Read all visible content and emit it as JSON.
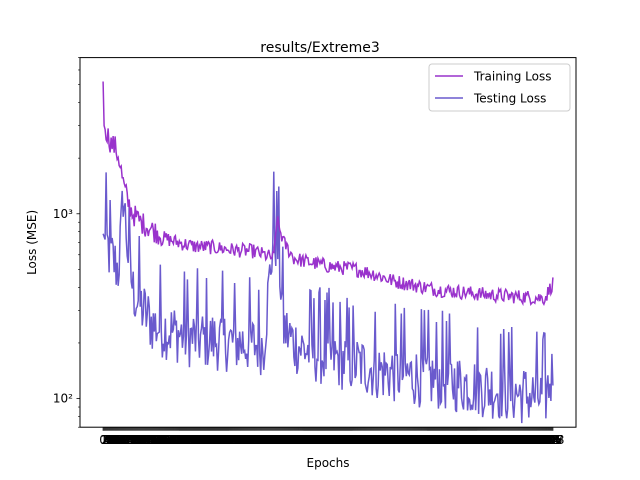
{
  "chart_data": {
    "type": "line",
    "title": "results/Extreme3",
    "xlabel": "Epochs",
    "ylabel": "Loss (MSE)",
    "yscale": "log",
    "ylim": [
      70,
      7000
    ],
    "xlim": [
      -23,
      471
    ],
    "epochs": 449,
    "x_tick_labels_note": "one tick per epoch 0..448, labels overlap into an unreadable band",
    "y_ticks": [
      {
        "value": 100,
        "label": "10²"
      },
      {
        "value": 1000,
        "label": "10³"
      }
    ],
    "legend_position": "upper right",
    "series": [
      {
        "name": "Training Loss",
        "color": "#9932CC",
        "control_points": [
          [
            0,
            5200
          ],
          [
            1,
            3000
          ],
          [
            4,
            2600
          ],
          [
            8,
            2300
          ],
          [
            12,
            2200
          ],
          [
            16,
            1900
          ],
          [
            20,
            1400
          ],
          [
            25,
            1100
          ],
          [
            30,
            950
          ],
          [
            38,
            860
          ],
          [
            50,
            780
          ],
          [
            60,
            720
          ],
          [
            75,
            680
          ],
          [
            90,
            650
          ],
          [
            110,
            640
          ],
          [
            130,
            620
          ],
          [
            150,
            610
          ],
          [
            170,
            560
          ],
          [
            173,
            900
          ],
          [
            180,
            680
          ],
          [
            190,
            560
          ],
          [
            200,
            540
          ],
          [
            215,
            520
          ],
          [
            230,
            500
          ],
          [
            250,
            490
          ],
          [
            270,
            460
          ],
          [
            290,
            420
          ],
          [
            310,
            400
          ],
          [
            330,
            380
          ],
          [
            350,
            370
          ],
          [
            370,
            360
          ],
          [
            400,
            350
          ],
          [
            420,
            345
          ],
          [
            440,
            340
          ],
          [
            448,
            410
          ]
        ]
      },
      {
        "name": "Testing Loss",
        "color": "#6A5ACD",
        "control_points": [
          [
            0,
            780
          ],
          [
            3,
            700
          ],
          [
            6,
            620
          ],
          [
            10,
            560
          ],
          [
            15,
            500
          ],
          [
            18,
            800
          ],
          [
            20,
            1300
          ],
          [
            25,
            600
          ],
          [
            30,
            380
          ],
          [
            40,
            300
          ],
          [
            50,
            250
          ],
          [
            60,
            240
          ],
          [
            70,
            230
          ],
          [
            85,
            215
          ],
          [
            100,
            210
          ],
          [
            120,
            205
          ],
          [
            140,
            200
          ],
          [
            160,
            195
          ],
          [
            170,
            800
          ],
          [
            175,
            600
          ],
          [
            180,
            240
          ],
          [
            190,
            200
          ],
          [
            200,
            185
          ],
          [
            220,
            170
          ],
          [
            240,
            160
          ],
          [
            260,
            150
          ],
          [
            280,
            140
          ],
          [
            300,
            135
          ],
          [
            320,
            130
          ],
          [
            340,
            125
          ],
          [
            360,
            120
          ],
          [
            380,
            115
          ],
          [
            400,
            110
          ],
          [
            420,
            105
          ],
          [
            440,
            100
          ],
          [
            448,
            140
          ]
        ]
      }
    ]
  }
}
